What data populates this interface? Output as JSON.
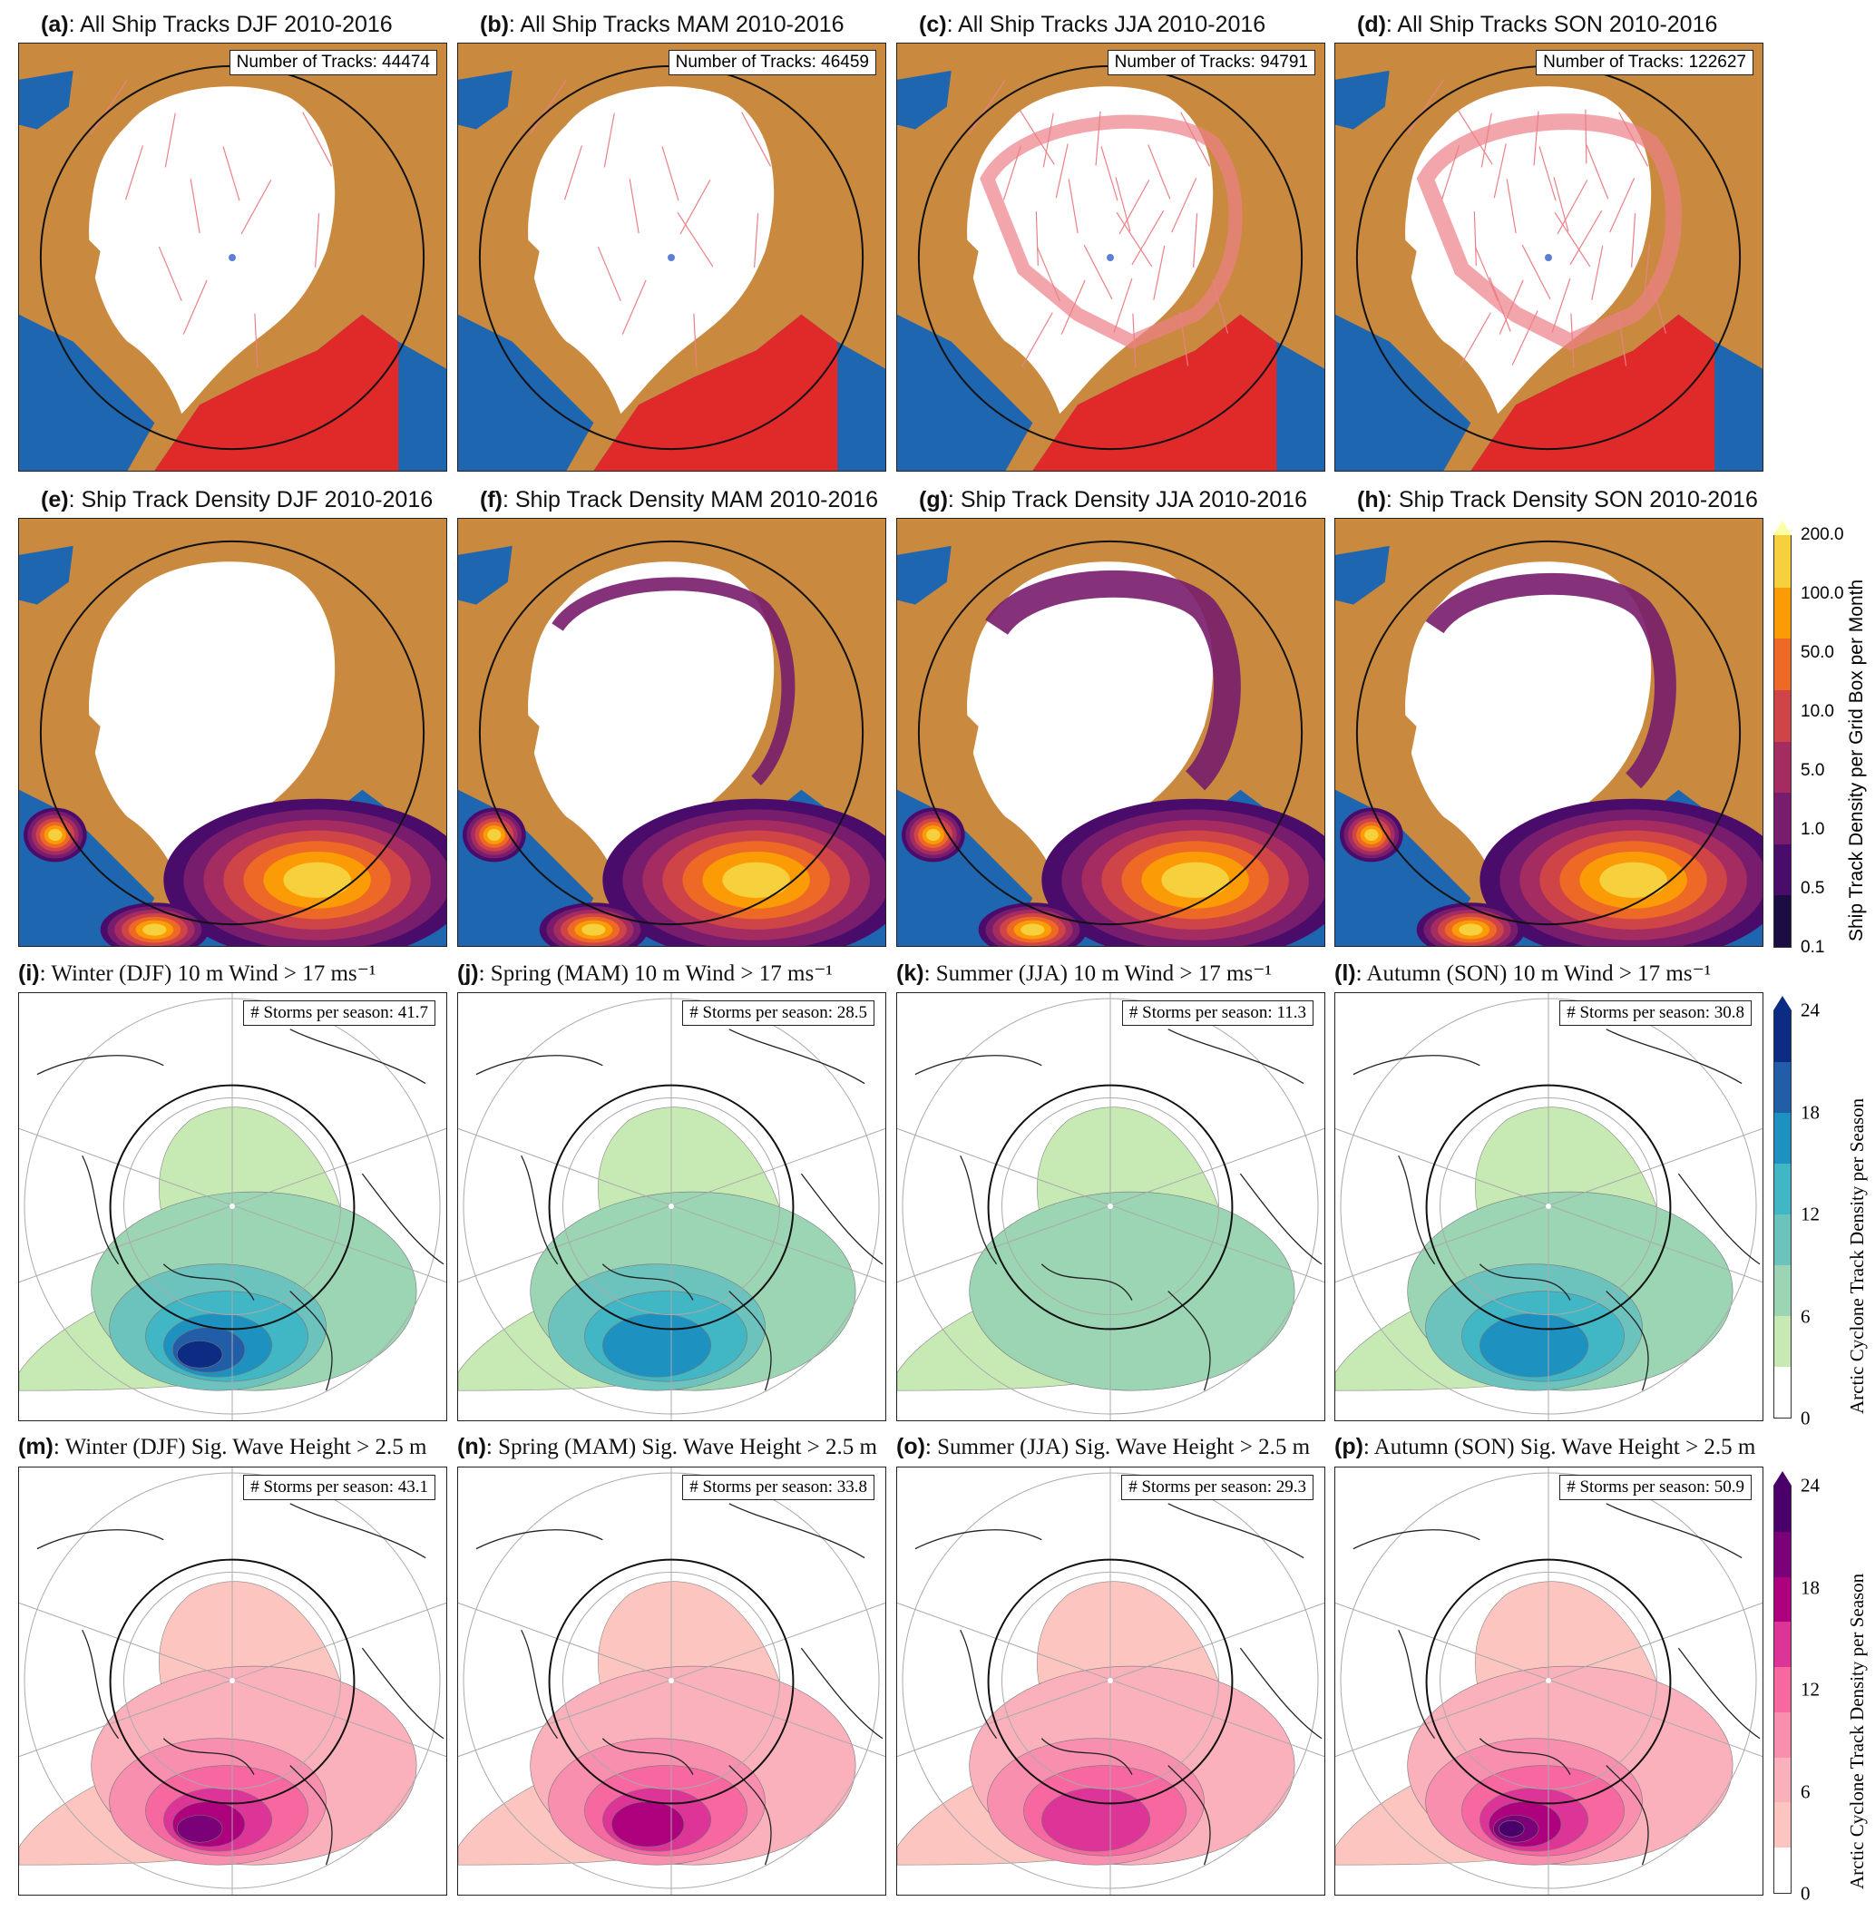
{
  "panels": [
    {
      "id": "a",
      "type": "tracks",
      "season": "DJF",
      "title": ": All Ship Tracks DJF 2010-2016",
      "box": "Number of Tracks: 44474",
      "intensity": 0.35
    },
    {
      "id": "b",
      "type": "tracks",
      "season": "MAM",
      "title": ": All Ship Tracks MAM 2010-2016",
      "box": "Number of Tracks: 46459",
      "intensity": 0.4
    },
    {
      "id": "c",
      "type": "tracks",
      "season": "JJA",
      "title": ": All Ship Tracks JJA 2010-2016",
      "box": "Number of Tracks: 94791",
      "intensity": 0.85
    },
    {
      "id": "d",
      "type": "tracks",
      "season": "SON",
      "title": ": All Ship Tracks SON 2010-2016",
      "box": "Number of Tracks: 122627",
      "intensity": 1.0
    },
    {
      "id": "e",
      "type": "density",
      "season": "DJF",
      "title": ": Ship Track Density DJF 2010-2016",
      "box": "",
      "intensity": 0.4
    },
    {
      "id": "f",
      "type": "density",
      "season": "MAM",
      "title": ": Ship Track Density MAM 2010-2016",
      "box": "",
      "intensity": 0.5
    },
    {
      "id": "g",
      "type": "density",
      "season": "JJA",
      "title": ": Ship Track Density JJA 2010-2016",
      "box": "",
      "intensity": 1.0
    },
    {
      "id": "h",
      "type": "density",
      "season": "SON",
      "title": ": Ship Track Density SON 2010-2016",
      "box": "",
      "intensity": 0.8
    },
    {
      "id": "i",
      "type": "wind",
      "season": "DJF",
      "title": ": Winter (DJF) 10 m Wind  >  17 ms⁻¹",
      "box": "# Storms per season: 41.7",
      "value": 41.7
    },
    {
      "id": "j",
      "type": "wind",
      "season": "MAM",
      "title": ": Spring (MAM) 10 m Wind  >  17 ms⁻¹",
      "box": "# Storms per season: 28.5",
      "value": 28.5
    },
    {
      "id": "k",
      "type": "wind",
      "season": "JJA",
      "title": ": Summer (JJA) 10 m Wind  >  17 ms⁻¹",
      "box": "# Storms per season: 11.3",
      "value": 11.3
    },
    {
      "id": "l",
      "type": "wind",
      "season": "SON",
      "title": ": Autumn (SON) 10 m Wind  >  17 ms⁻¹",
      "box": "# Storms per season: 30.8",
      "value": 30.8
    },
    {
      "id": "m",
      "type": "wave",
      "season": "DJF",
      "title": ": Winter (DJF) Sig. Wave Height  >  2.5 m",
      "box": "# Storms per season: 43.1",
      "value": 43.1
    },
    {
      "id": "n",
      "type": "wave",
      "season": "MAM",
      "title": ": Spring (MAM) Sig. Wave Height  >  2.5 m",
      "box": "# Storms per season: 33.8",
      "value": 33.8
    },
    {
      "id": "o",
      "type": "wave",
      "season": "JJA",
      "title": ": Summer (JJA) Sig. Wave Height  >  2.5 m",
      "box": "# Storms per season: 29.3",
      "value": 29.3
    },
    {
      "id": "p",
      "type": "wave",
      "season": "SON",
      "title": ": Autumn (SON) Sig. Wave Height  >  2.5 m",
      "box": "# Storms per season: 50.9",
      "value": 50.9
    }
  ],
  "colorbars": {
    "density": {
      "label": "Ship Track Density per Grid Box per Month",
      "ticks": [
        "0.1",
        "0.5",
        "1.0",
        "5.0",
        "10.0",
        "50.0",
        "100.0",
        "200.0"
      ],
      "colors": [
        "#1b0c41",
        "#4a0c6b",
        "#781c6d",
        "#a52c60",
        "#cf4446",
        "#ed6925",
        "#fb9b06",
        "#f7d13d",
        "#fcffa4"
      ]
    },
    "wind": {
      "label": "Arctic Cyclone Track Density per Season",
      "ticks": [
        "0",
        "6",
        "12",
        "18",
        "24"
      ],
      "colors": [
        "#ffffff",
        "#c7e9b4",
        "#9bd5b4",
        "#6cc3bd",
        "#41b6c4",
        "#1d91c0",
        "#225ea8",
        "#0c2c84"
      ]
    },
    "wave": {
      "label": "Arctic Cyclone Track Density per Season",
      "ticks": [
        "0",
        "6",
        "12",
        "18",
        "24"
      ],
      "colors": [
        "#ffffff",
        "#fcc5c0",
        "#fbb1bc",
        "#f88fae",
        "#f768a1",
        "#dd3497",
        "#ae017e",
        "#7a0177",
        "#49006a"
      ]
    }
  },
  "map_colors": {
    "land": "#c98a3f",
    "ocean": "#1f66b0",
    "ice": "#ffffff",
    "tracks_dense": "#e02a2a",
    "tracks_light": "#ec7f86"
  }
}
